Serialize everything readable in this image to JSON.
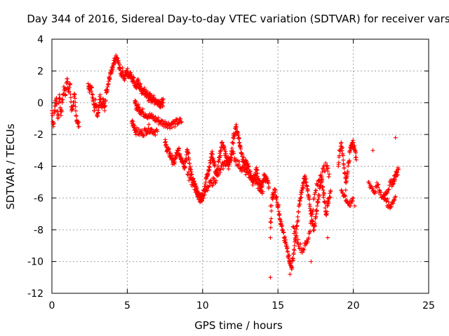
{
  "chart_data": {
    "type": "scatter",
    "title": "Day 344 of 2016, Sidereal Day-to-day VTEC variation (SDTVAR) for receiver vars",
    "xlabel": "GPS time / hours",
    "ylabel": "SDTVAR / TECUs",
    "xlim": [
      0,
      25
    ],
    "ylim": [
      -12,
      4
    ],
    "xticks": [
      0,
      5,
      10,
      15,
      20,
      25
    ],
    "yticks": [
      -12,
      -10,
      -8,
      -6,
      -4,
      -2,
      0,
      2,
      4
    ],
    "grid": true,
    "marker": "+",
    "color": "#ff0000",
    "series": [
      {
        "name": "vars",
        "x": [
          0.0,
          0.1,
          0.2,
          0.3,
          0.4,
          0.5,
          0.6,
          0.7,
          0.8,
          0.9,
          1.0,
          1.1,
          1.2,
          1.3,
          1.4,
          1.5,
          1.6,
          1.7,
          1.8,
          2.4,
          2.5,
          2.6,
          2.7,
          2.8,
          2.9,
          3.0,
          3.1,
          3.2,
          3.3,
          3.4,
          3.5,
          3.6,
          3.7,
          3.8,
          3.9,
          4.0,
          4.1,
          4.2,
          4.3,
          4.4,
          4.5,
          4.6,
          4.7,
          4.8,
          4.9,
          5.0,
          5.1,
          5.2,
          5.3,
          5.4,
          5.5,
          5.6,
          5.7,
          5.8,
          5.9,
          6.0,
          6.1,
          6.2,
          6.3,
          6.4,
          6.5,
          6.6,
          6.7,
          6.8,
          6.9,
          7.0,
          7.1,
          7.2,
          7.3,
          7.4,
          5.5,
          5.6,
          5.7,
          5.8,
          5.9,
          6.0,
          6.2,
          6.4,
          6.6,
          6.8,
          7.0,
          7.2,
          7.4,
          7.6,
          7.8,
          8.0,
          8.2,
          8.4,
          8.6,
          5.3,
          5.4,
          5.5,
          5.6,
          5.8,
          6.0,
          6.2,
          6.4,
          6.6,
          6.8,
          7.0,
          7.5,
          7.6,
          7.7,
          7.8,
          7.9,
          8.0,
          8.1,
          8.2,
          8.3,
          8.4,
          8.5,
          8.6,
          8.7,
          8.8,
          8.9,
          9.0,
          9.1,
          9.2,
          9.3,
          9.4,
          9.5,
          9.6,
          9.7,
          9.8,
          9.9,
          10.0,
          10.1,
          10.2,
          10.3,
          10.4,
          10.5,
          10.6,
          10.7,
          10.8,
          10.9,
          11.0,
          11.1,
          11.2,
          11.3,
          11.4,
          11.5,
          11.6,
          11.7,
          11.8,
          11.9,
          12.0,
          12.1,
          12.2,
          12.3,
          12.4,
          12.5,
          12.6,
          12.7,
          12.8,
          12.9,
          13.0,
          13.1,
          13.2,
          13.3,
          13.4,
          13.5,
          13.6,
          13.7,
          13.8,
          13.9,
          14.0,
          14.1,
          14.2,
          14.3,
          14.4,
          9.0,
          9.2,
          9.4,
          9.6,
          9.8,
          10.0,
          10.2,
          10.4,
          10.6,
          10.8,
          11.0,
          11.2,
          11.4,
          11.6,
          11.8,
          12.0,
          12.2,
          12.4,
          12.6,
          12.8,
          13.0,
          13.2,
          13.4,
          13.6,
          13.8,
          14.0,
          14.5,
          14.5,
          14.5,
          14.6,
          14.7,
          14.8,
          14.9,
          15.0,
          15.1,
          15.2,
          15.3,
          15.4,
          15.5,
          15.6,
          15.7,
          15.8,
          15.9,
          16.0,
          16.1,
          16.2,
          16.3,
          16.4,
          16.5,
          16.6,
          16.7,
          16.8,
          16.9,
          17.0,
          17.1,
          17.2,
          17.3,
          17.4,
          17.5,
          17.6,
          17.7,
          17.8,
          17.9,
          18.0,
          18.1,
          18.2,
          18.3,
          18.4,
          18.5,
          16.0,
          16.2,
          16.4,
          16.6,
          16.8,
          17.0,
          17.2,
          17.4,
          17.6,
          17.8,
          18.0,
          18.2,
          18.4,
          19.0,
          19.1,
          19.2,
          19.3,
          19.4,
          19.5,
          19.6,
          19.7,
          19.8,
          19.9,
          20.0,
          20.1,
          20.2,
          19.2,
          19.4,
          19.6,
          19.8,
          20.0,
          21.0,
          21.2,
          21.4,
          21.6,
          21.8,
          22.0,
          22.2,
          22.4,
          22.6,
          22.7,
          22.8,
          22.9,
          23.0,
          22.0,
          22.2,
          22.4,
          22.6,
          22.8,
          14.5,
          15.8,
          17.2,
          18.3,
          19.5,
          20.1,
          21.3,
          22.8
        ],
        "y": [
          -0.5,
          -1.5,
          -0.2,
          0.3,
          -1.0,
          0.5,
          -0.8,
          0.2,
          1.0,
          0.5,
          1.5,
          0.8,
          1.2,
          -0.5,
          -0.2,
          0.5,
          -0.8,
          -1.2,
          -1.5,
          1.2,
          0.8,
          1.0,
          0.5,
          -0.5,
          0.2,
          -0.8,
          -0.3,
          0.5,
          -0.2,
          0.2,
          -0.5,
          0.8,
          1.0,
          1.5,
          1.8,
          2.0,
          2.4,
          2.7,
          2.8,
          2.5,
          2.2,
          1.8,
          2.0,
          1.5,
          1.8,
          2.0,
          1.7,
          1.9,
          1.5,
          1.6,
          1.2,
          1.0,
          1.3,
          1.1,
          0.9,
          0.6,
          0.8,
          0.5,
          0.6,
          0.3,
          0.4,
          0.2,
          0.3,
          0.1,
          0.2,
          0.0,
          0.1,
          -0.1,
          0.0,
          0.0,
          0.0,
          -0.2,
          -0.3,
          -0.4,
          -0.5,
          -0.6,
          -0.7,
          -0.8,
          -0.9,
          -1.0,
          -1.1,
          -1.2,
          -1.3,
          -1.3,
          -1.4,
          -1.3,
          -1.3,
          -1.2,
          -1.2,
          -1.2,
          -1.4,
          -1.6,
          -1.8,
          -1.9,
          -1.9,
          -1.8,
          -1.6,
          -1.7,
          -1.8,
          -1.8,
          -2.5,
          -2.8,
          -3.0,
          -3.2,
          -3.4,
          -3.6,
          -3.8,
          -3.5,
          -3.2,
          -3.0,
          -3.3,
          -3.5,
          -3.7,
          -4.0,
          -3.5,
          -3.0,
          -3.6,
          -4.2,
          -4.8,
          -5.0,
          -5.3,
          -5.6,
          -5.8,
          -6.0,
          -6.2,
          -5.8,
          -5.5,
          -5.0,
          -4.5,
          -4.2,
          -3.8,
          -3.2,
          -3.5,
          -4.0,
          -4.5,
          -4.2,
          -3.6,
          -3.0,
          -2.5,
          -2.8,
          -3.2,
          -3.5,
          -4.0,
          -3.8,
          -3.2,
          -2.5,
          -2.0,
          -1.5,
          -1.8,
          -2.2,
          -2.8,
          -3.2,
          -3.6,
          -3.8,
          -3.9,
          -4.0,
          -4.3,
          -4.6,
          -5.0,
          -4.8,
          -4.5,
          -4.2,
          -4.8,
          -5.2,
          -5.5,
          -4.9,
          -4.6,
          -4.8,
          -5.0,
          -5.3,
          -4.5,
          -4.8,
          -5.2,
          -5.5,
          -5.8,
          -6.0,
          -5.6,
          -5.3,
          -5.0,
          -4.9,
          -4.6,
          -4.2,
          -3.9,
          -3.7,
          -3.5,
          -3.2,
          -3.6,
          -3.9,
          -4.1,
          -4.3,
          -4.4,
          -4.6,
          -4.8,
          -5.1,
          -5.4,
          -5.6,
          -6.5,
          -7.5,
          -8.5,
          -6.0,
          -5.8,
          -5.5,
          -6.0,
          -6.5,
          -7.0,
          -7.6,
          -8.0,
          -8.5,
          -8.8,
          -9.2,
          -9.6,
          -10.0,
          -10.4,
          -9.8,
          -9.0,
          -8.2,
          -7.5,
          -6.5,
          -6.0,
          -5.5,
          -5.0,
          -4.6,
          -5.2,
          -5.8,
          -6.4,
          -7.0,
          -7.6,
          -8.0,
          -7.2,
          -6.5,
          -5.8,
          -5.2,
          -4.8,
          -5.5,
          -6.2,
          -7.0,
          -6.5,
          -6.0,
          -5.6,
          -7.8,
          -8.5,
          -8.9,
          -9.3,
          -9.0,
          -8.6,
          -7.5,
          -6.0,
          -5.2,
          -4.6,
          -4.2,
          -4.0,
          -4.5,
          -4.0,
          -3.0,
          -2.5,
          -3.3,
          -4.1,
          -5.0,
          -4.5,
          -3.8,
          -2.8,
          -2.6,
          -2.5,
          -3.0,
          -3.6,
          -5.5,
          -5.8,
          -6.2,
          -6.5,
          -6.0,
          -5.0,
          -5.3,
          -5.6,
          -5.2,
          -5.8,
          -6.0,
          -5.6,
          -5.2,
          -5.0,
          -4.8,
          -4.6,
          -4.4,
          -4.2,
          -5.8,
          -6.2,
          -6.5,
          -6.3,
          -5.9,
          -11.0,
          -10.8,
          -10.0,
          -8.5,
          -5.5,
          -6.5,
          -3.0,
          -2.2
        ]
      }
    ]
  }
}
